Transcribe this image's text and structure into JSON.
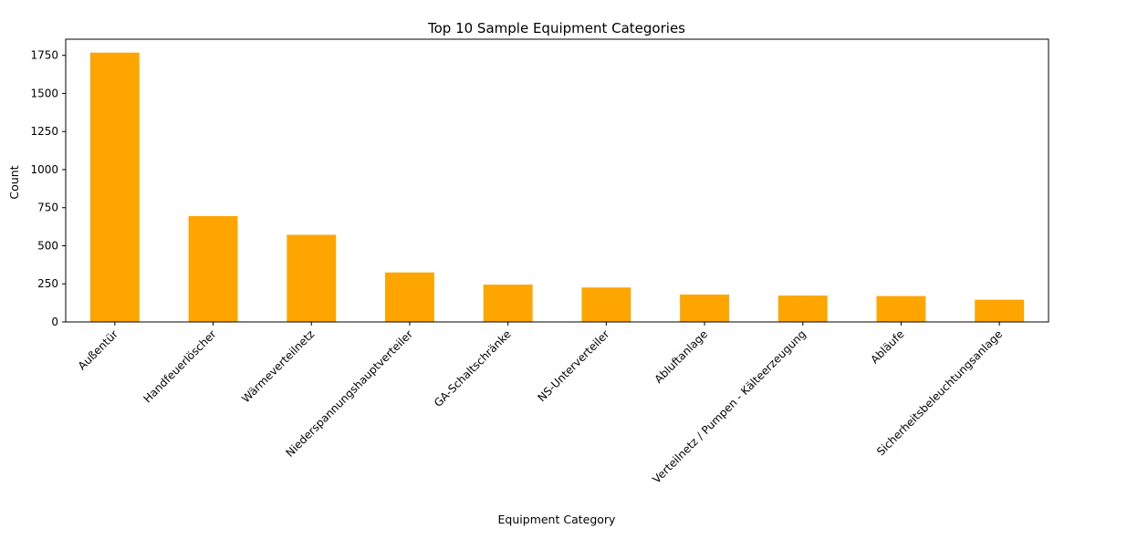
{
  "chart_data": {
    "type": "bar",
    "title": "Top 10 Sample Equipment Categories",
    "xlabel": "Equipment Category",
    "ylabel": "Count",
    "categories": [
      "Außentür",
      "Handfeuerlöscher",
      "Wärmeverteilnetz",
      "Niederspannungshauptverteiler",
      "GA-Schaltschränke",
      "NS-Unterverteiler",
      "Abluftanlage",
      "Verteilnetz / Pumpen - Kälteerzeugung",
      "Abläufe",
      "Sicherheitsbeleuchtungsanlage"
    ],
    "values": [
      1768,
      695,
      572,
      325,
      245,
      226,
      180,
      173,
      170,
      146
    ],
    "ylim": [
      0,
      1856
    ],
    "yticks": [
      0,
      250,
      500,
      750,
      1000,
      1250,
      1500,
      1750
    ],
    "bar_color": "#ffa500",
    "grid": false,
    "legend": "none"
  }
}
